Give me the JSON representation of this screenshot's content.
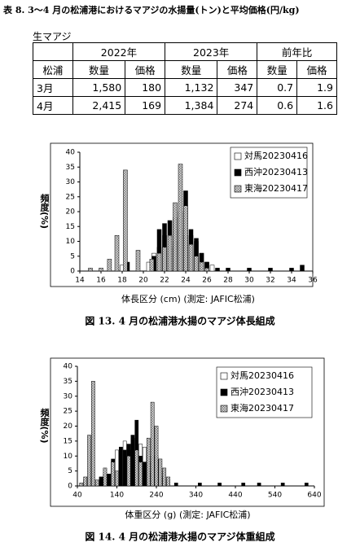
{
  "table_title": "表 8. 3～4 月の松浦港におけるマアジの水揚量(トン)と平均価格(円/kg)",
  "table": {
    "caption": "生マアジ",
    "header": [
      "松浦",
      "2022年",
      "2023年",
      "前年比"
    ],
    "subheader": [
      "数量",
      "価格",
      "数量",
      "価格",
      "数量",
      "価格"
    ],
    "rows": [
      [
        "3月",
        "1,580",
        "180",
        "1,132",
        "347",
        "0.7",
        "1.9"
      ],
      [
        "4月",
        "2,415",
        "169",
        "1,384",
        "274",
        "0.6",
        "1.6"
      ]
    ]
  },
  "chart_data": [
    {
      "type": "bar",
      "caption": "図 13. 4 月の松浦港水揚のマアジ体長組成",
      "xlabel": "体長区分 (cm)  (測定: JAFIC松浦)",
      "ylabel": "頻度(%)",
      "xlim": [
        14,
        36
      ],
      "xticks": [
        14,
        16,
        18,
        20,
        22,
        24,
        26,
        28,
        30,
        32,
        34,
        36
      ],
      "ylim": [
        0,
        40
      ],
      "yticks": [
        0,
        5,
        10,
        15,
        20,
        25,
        30,
        35,
        40
      ],
      "legend": "upper right",
      "series": [
        {
          "name": "対馬20230416",
          "color": "#ffffff",
          "x": [
            18,
            20.5,
            21,
            21.5,
            22,
            22.5,
            23,
            23.5,
            24,
            24.5,
            25,
            25.5,
            26,
            26.5
          ],
          "values": [
            2,
            3,
            6,
            8,
            12,
            8,
            10,
            14,
            12,
            12,
            10,
            6,
            3,
            2
          ]
        },
        {
          "name": "西沖20230413",
          "color": "#000000",
          "x": [
            18.5,
            21,
            21.5,
            22,
            22.5,
            23,
            23.5,
            24,
            24.5,
            25,
            25.5,
            26,
            27,
            28,
            30,
            32,
            34,
            35
          ],
          "values": [
            3,
            5,
            14,
            16,
            17,
            18,
            20,
            27,
            14,
            11,
            6,
            3,
            1,
            1,
            1,
            1,
            1,
            2
          ]
        },
        {
          "name": "東海20230417",
          "color": "#b8b8b8",
          "x": [
            15,
            16,
            16.8,
            17.5,
            18.3,
            19.5,
            20.8,
            21.5,
            22,
            22.5,
            23,
            23.5,
            24,
            24.5,
            25,
            25.5,
            26
          ],
          "values": [
            1,
            1,
            4,
            12,
            34,
            7,
            4,
            6,
            8,
            12,
            23,
            36,
            22,
            9,
            5,
            3,
            1
          ]
        }
      ]
    },
    {
      "type": "bar",
      "caption": "図 14. 4 月の松浦港水揚のマアジ体重組成",
      "xlabel": "体重区分 (g)  (測定: JAFIC松浦)",
      "ylabel": "頻度(%)",
      "xlim": [
        40,
        640
      ],
      "xticks": [
        40,
        140,
        240,
        340,
        440,
        540,
        640
      ],
      "ylim": [
        0,
        40
      ],
      "yticks": [
        0,
        5,
        10,
        15,
        20,
        25,
        30,
        35,
        40
      ],
      "legend": "upper right",
      "series": [
        {
          "name": "対馬20230416",
          "color": "#ffffff",
          "x": [
            60,
            70,
            100,
            110,
            130,
            140,
            150,
            160,
            170,
            180,
            190,
            200,
            210,
            220,
            230,
            240,
            250,
            260,
            270
          ],
          "values": [
            2,
            3,
            3,
            4,
            8,
            12,
            13,
            15,
            12,
            16,
            8,
            14,
            13,
            10,
            8,
            10,
            5,
            2,
            2
          ]
        },
        {
          "name": "西沖20230413",
          "color": "#000000",
          "x": [
            100,
            120,
            130,
            150,
            160,
            170,
            180,
            190,
            200,
            210,
            220,
            230,
            250,
            260,
            290,
            350,
            400,
            460,
            500,
            560,
            620
          ],
          "values": [
            3,
            4,
            9,
            13,
            12,
            14,
            17,
            22,
            10,
            8,
            4,
            5,
            3,
            3,
            1,
            1,
            1,
            1,
            1,
            1,
            1
          ]
        },
        {
          "name": "東海20230417",
          "color": "#b8b8b8",
          "x": [
            50,
            60,
            70,
            80,
            90,
            110,
            130,
            140,
            170,
            190,
            200,
            220,
            230,
            240,
            250,
            260,
            270
          ],
          "values": [
            1,
            3,
            17,
            35,
            2,
            6,
            8,
            5,
            10,
            12,
            8,
            16,
            28,
            20,
            9,
            6,
            3
          ]
        }
      ]
    }
  ]
}
